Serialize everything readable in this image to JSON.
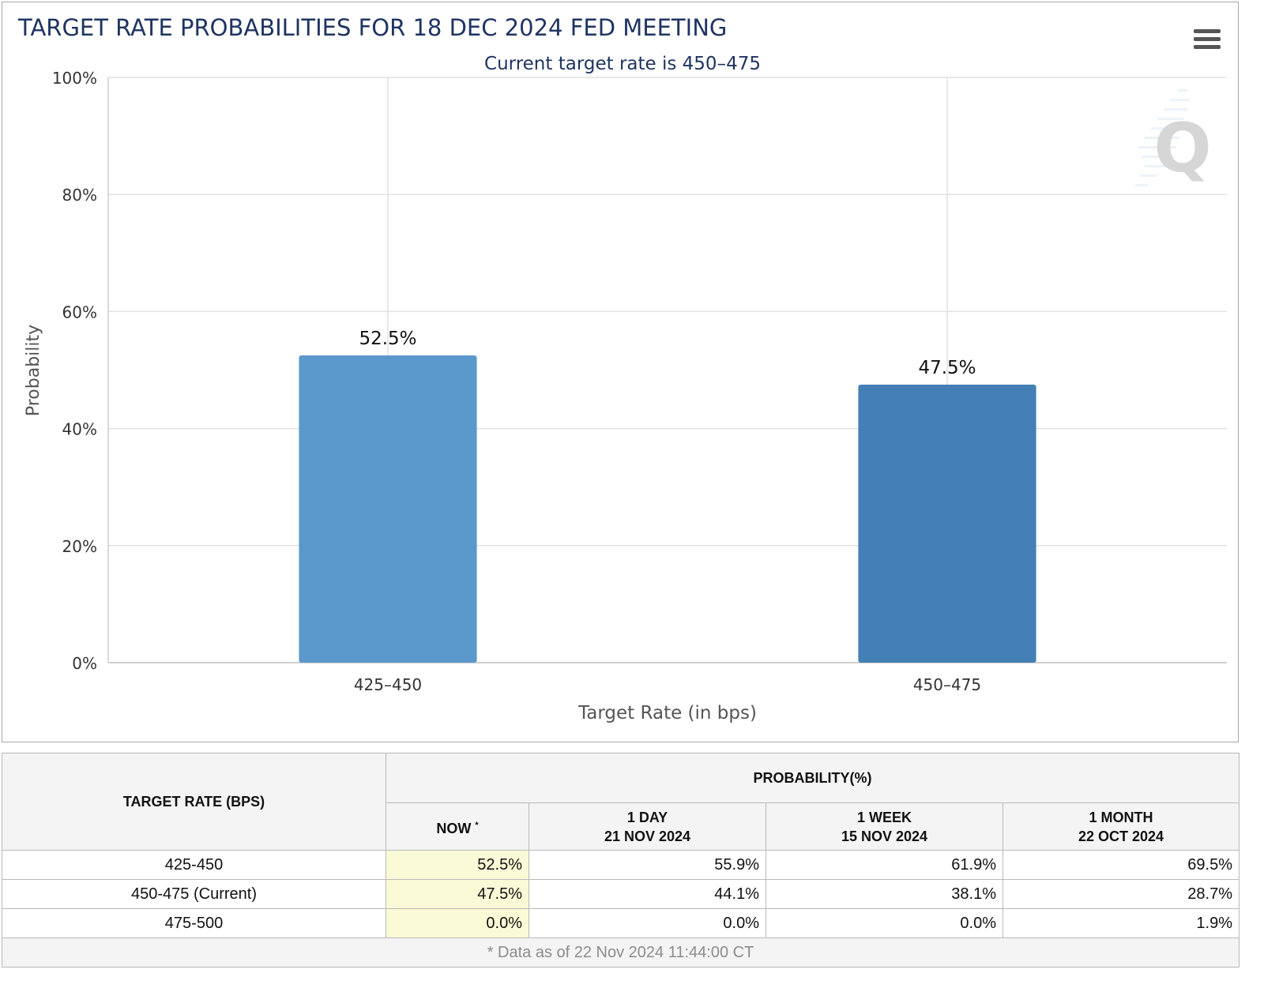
{
  "chart_title": "TARGET RATE PROBABILITIES FOR 18 DEC 2024 FED MEETING",
  "menu_icon": "hamburger-menu-icon",
  "watermark_icon": "q-logo-watermark-icon",
  "colors": {
    "title": "#1f3462",
    "bar1": "#5b98cc",
    "bar2": "#447fb5",
    "grid": "#e1e1e1",
    "axis_text": "#222222"
  },
  "chart_data": {
    "type": "bar",
    "title": "TARGET RATE PROBABILITIES FOR 18 DEC 2024 FED MEETING",
    "subtitle": "Current target rate is 450–475",
    "xlabel": "Target Rate (in bps)",
    "ylabel": "Probability",
    "categories": [
      "425–450",
      "450–475"
    ],
    "values": [
      52.5,
      47.5
    ],
    "data_labels": [
      "52.5%",
      "47.5%"
    ],
    "yticks": [
      "0%",
      "20%",
      "40%",
      "60%",
      "80%",
      "100%"
    ],
    "ylim": [
      0,
      100
    ],
    "grid": true,
    "legend": "none"
  },
  "table": {
    "header_rate": "TARGET RATE (BPS)",
    "header_probability": "PROBABILITY(%)",
    "col_now": "NOW",
    "col_now_marker": "*",
    "col_1day": "1 DAY",
    "col_1day_date": "21 NOV 2024",
    "col_1week": "1 WEEK",
    "col_1week_date": "15 NOV 2024",
    "col_1month": "1 MONTH",
    "col_1month_date": "22 OCT 2024",
    "rows": [
      {
        "rate": "425-450",
        "now": "52.5%",
        "day": "55.9%",
        "week": "61.9%",
        "month": "69.5%"
      },
      {
        "rate": "450-475 (Current)",
        "now": "47.5%",
        "day": "44.1%",
        "week": "38.1%",
        "month": "28.7%"
      },
      {
        "rate": "475-500",
        "now": "0.0%",
        "day": "0.0%",
        "week": "0.0%",
        "month": "1.9%"
      }
    ],
    "footnote": "* Data as of 22 Nov 2024 11:44:00 CT"
  }
}
